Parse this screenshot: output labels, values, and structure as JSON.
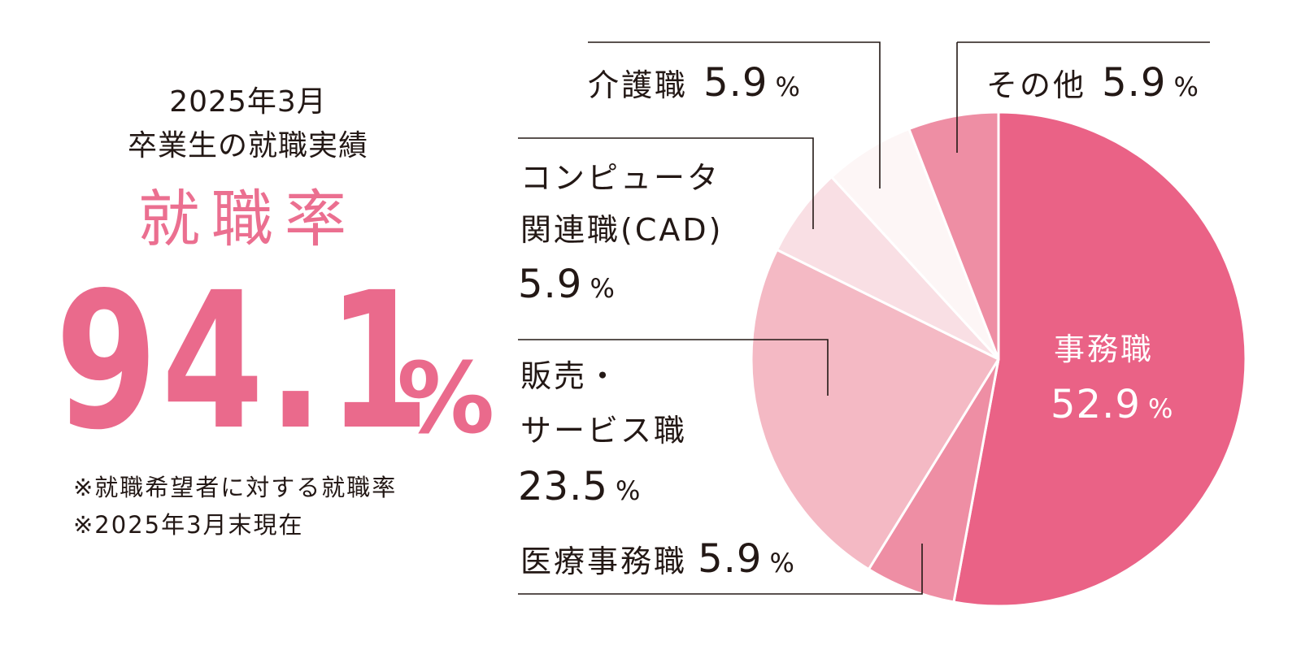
{
  "header": {
    "subtitle_line1": "2025年3月",
    "subtitle_line2": "卒業生の就職実績",
    "rate_title": "就職率",
    "rate_value": "94.1",
    "rate_unit": "%"
  },
  "notes": [
    "※就職希望者に対する就職率",
    "※2025年3月末現在"
  ],
  "colors": {
    "accent": "#ea6a8c",
    "text": "#231815",
    "leader": "#231815"
  },
  "chart_data": {
    "type": "pie",
    "slices": [
      {
        "label": "事務職",
        "value": 52.9,
        "color": "#ea6286"
      },
      {
        "label": "医療事務職",
        "value": 5.9,
        "color": "#ee8ea4"
      },
      {
        "label": "販売・サービス職",
        "value": 23.5,
        "color": "#f4b9c4"
      },
      {
        "label": "コンピュータ関連職(CAD)",
        "value": 5.9,
        "color": "#f9dfe4"
      },
      {
        "label": "介護職",
        "value": 5.9,
        "color": "#fdf6f6"
      },
      {
        "label": "その他",
        "value": 5.9,
        "color": "#ee8ea4"
      }
    ],
    "labels": {
      "jimu_line1": "事務職",
      "jimu_value": "52.9",
      "iryo_line1": "医療事務職",
      "iryo_value": "5.9",
      "hanbai_line1": "販売・",
      "hanbai_line2": "サービス職",
      "hanbai_value": "23.5",
      "computer_line1": "コンピュータ",
      "computer_line2": "関連職(CAD)",
      "computer_value": "5.9",
      "kaigo_line1": "介護職",
      "kaigo_value": "5.9",
      "other_line1": "その他",
      "other_value": "5.9",
      "unit": "%"
    }
  }
}
